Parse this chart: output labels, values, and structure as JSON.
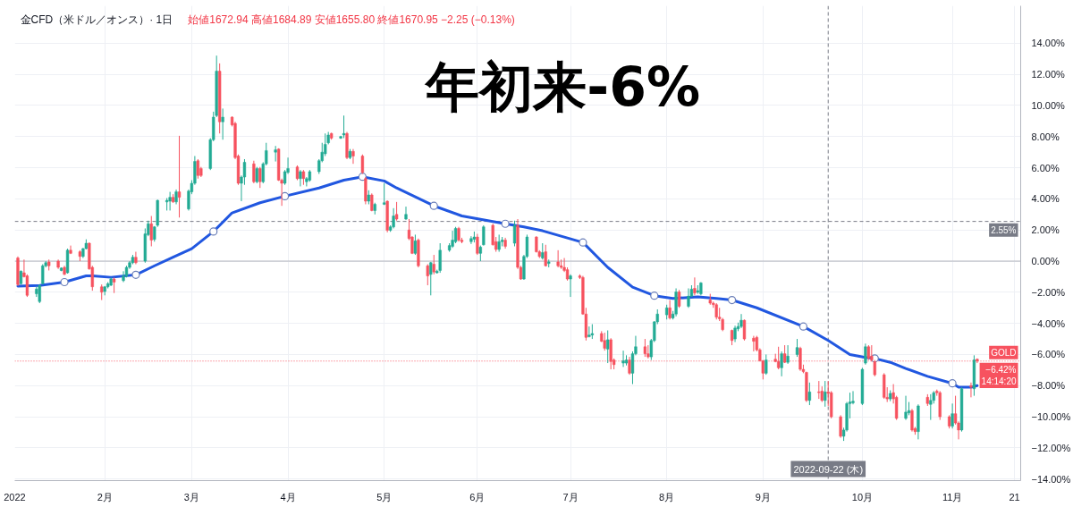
{
  "chart_data": {
    "type": "candlestick",
    "title": "年初来-6%",
    "subtitle": "金CFD（米ドル／オンス）· 1日",
    "annotations": [
      "始値1672.94 高値1684.89 安値1655.80 終値1670.95 −2.25 (−0.13%)"
    ],
    "xlim": [
      "2022-01-03",
      "2022-11-23"
    ],
    "xticks": [
      {
        "value": "2022-01-03",
        "label": "2022"
      },
      {
        "value": "2022-02-01",
        "label": "2月"
      },
      {
        "value": "2022-03-01",
        "label": "3月"
      },
      {
        "value": "2022-04-01",
        "label": "4月"
      },
      {
        "value": "2022-05-02",
        "label": "5月"
      },
      {
        "value": "2022-06-01",
        "label": "6月"
      },
      {
        "value": "2022-07-01",
        "label": "7月"
      },
      {
        "value": "2022-08-01",
        "label": "8月"
      },
      {
        "value": "2022-09-01",
        "label": "9月"
      },
      {
        "value": "2022-10-03",
        "label": "10月"
      },
      {
        "value": "2022-11-01",
        "label": "11月"
      },
      {
        "value": "2022-11-21",
        "label": "21"
      }
    ],
    "ylim": [
      -14.1,
      16.4
    ],
    "yticks": [
      {
        "value": 14,
        "label": "14.00%"
      },
      {
        "value": 12,
        "label": "12.00%"
      },
      {
        "value": 10,
        "label": "10.00%"
      },
      {
        "value": 8,
        "label": "8.00%"
      },
      {
        "value": 6,
        "label": "6.00%"
      },
      {
        "value": 4,
        "label": "4.00%"
      },
      {
        "value": 2,
        "label": "2.00%"
      },
      {
        "value": 0,
        "label": "0.00%"
      },
      {
        "value": -2,
        "label": "−2.00%"
      },
      {
        "value": -4,
        "label": "−4.00%"
      },
      {
        "value": -6,
        "label": "−6.00%"
      },
      {
        "value": -8,
        "label": "−8.00%"
      },
      {
        "value": -10,
        "label": "−10.00%"
      },
      {
        "value": -12,
        "label": "−12.00%"
      },
      {
        "value": -14,
        "label": "−14.00%"
      }
    ],
    "grid": true,
    "ref_lines": [
      {
        "axis": "y",
        "value": 0,
        "color": "#b2b5be",
        "line_style": "solid"
      },
      {
        "axis": "x",
        "value": "2022-09-22",
        "label": "2022-09-22 (木)",
        "color": "#787b86",
        "line_style": "dashed"
      },
      {
        "axis": "y",
        "value": 2.55,
        "label": "2.55%",
        "color": "#787b86",
        "line_style": "dashed"
      },
      {
        "axis": "y",
        "value": -6.42,
        "label": "−6.42%\n14:14:20",
        "color": "#f7525f",
        "line_style": "dotted"
      }
    ],
    "series": [
      {
        "type": "line",
        "color": "#2157e0",
        "x": [
          "2022-01-04",
          "2022-01-11",
          "2022-01-19",
          "2022-01-26",
          "2022-01-28",
          "2022-02-03",
          "2022-02-11",
          "2022-02-17",
          "2022-02-23",
          "2022-03-01",
          "2022-03-08",
          "2022-03-14",
          "2022-03-23",
          "2022-03-31",
          "2022-04-11",
          "2022-04-19",
          "2022-04-25",
          "2022-05-02",
          "2022-05-06",
          "2022-05-18",
          "2022-05-27",
          "2022-06-10",
          "2022-06-16",
          "2022-06-22",
          "2022-07-05",
          "2022-07-13",
          "2022-07-21",
          "2022-07-28",
          "2022-08-03",
          "2022-08-11",
          "2022-08-17",
          "2022-08-22",
          "2022-08-30",
          "2022-09-14",
          "2022-09-22",
          "2022-09-29",
          "2022-10-04",
          "2022-10-07",
          "2022-10-12",
          "2022-10-17",
          "2022-10-24",
          "2022-11-01",
          "2022-11-03",
          "2022-11-07",
          "2022-11-09"
        ],
        "values": [
          -1.6,
          -1.56,
          -1.35,
          -0.95,
          -0.94,
          -1.04,
          -0.88,
          -0.3,
          0.25,
          0.8,
          1.9,
          3.1,
          3.75,
          4.17,
          4.7,
          5.2,
          5.42,
          5.15,
          4.7,
          3.55,
          2.9,
          2.4,
          2.2,
          1.95,
          1.2,
          -0.4,
          -1.67,
          -2.22,
          -2.4,
          -2.3,
          -2.4,
          -2.5,
          -3.0,
          -4.2,
          -5.1,
          -6.0,
          -6.19,
          -6.25,
          -6.5,
          -6.9,
          -7.4,
          -7.85,
          -8.1,
          -8.1,
          -8.0
        ]
      },
      {
        "type": "scatter",
        "color": "#ffffff",
        "marker": "circle",
        "x": [
          "2022-01-19",
          "2022-02-11",
          "2022-03-08",
          "2022-03-31",
          "2022-04-25",
          "2022-05-18",
          "2022-06-10",
          "2022-07-05",
          "2022-07-28",
          "2022-08-22",
          "2022-09-14",
          "2022-10-07",
          "2022-11-01"
        ],
        "values": [
          -1.35,
          -0.88,
          1.9,
          4.17,
          5.42,
          3.55,
          2.4,
          1.2,
          -2.22,
          -2.5,
          -4.2,
          -6.25,
          -7.85
        ]
      },
      {
        "name": "GOLD",
        "x": [
          "2022-01-04",
          "2022-01-05",
          "2022-01-06",
          "2022-01-07",
          "2022-01-10",
          "2022-01-11",
          "2022-01-12",
          "2022-01-13",
          "2022-01-14",
          "2022-01-17",
          "2022-01-18",
          "2022-01-19",
          "2022-01-20",
          "2022-01-21",
          "2022-01-24",
          "2022-01-25",
          "2022-01-26",
          "2022-01-27",
          "2022-01-28",
          "2022-01-31",
          "2022-02-01",
          "2022-02-02",
          "2022-02-03",
          "2022-02-04",
          "2022-02-07",
          "2022-02-08",
          "2022-02-09",
          "2022-02-10",
          "2022-02-11",
          "2022-02-14",
          "2022-02-15",
          "2022-02-16",
          "2022-02-17",
          "2022-02-18",
          "2022-02-21",
          "2022-02-22",
          "2022-02-23",
          "2022-02-24",
          "2022-02-25",
          "2022-02-28",
          "2022-03-01",
          "2022-03-02",
          "2022-03-03",
          "2022-03-04",
          "2022-03-07",
          "2022-03-08",
          "2022-03-09",
          "2022-03-10",
          "2022-03-11",
          "2022-03-14",
          "2022-03-15",
          "2022-03-16",
          "2022-03-17",
          "2022-03-18",
          "2022-03-21",
          "2022-03-22",
          "2022-03-23",
          "2022-03-24",
          "2022-03-25",
          "2022-03-28",
          "2022-03-29",
          "2022-03-30",
          "2022-03-31",
          "2022-04-01",
          "2022-04-04",
          "2022-04-05",
          "2022-04-06",
          "2022-04-07",
          "2022-04-08",
          "2022-04-11",
          "2022-04-12",
          "2022-04-13",
          "2022-04-14",
          "2022-04-15",
          "2022-04-18",
          "2022-04-19",
          "2022-04-20",
          "2022-04-21",
          "2022-04-22",
          "2022-04-25",
          "2022-04-26",
          "2022-04-27",
          "2022-04-28",
          "2022-04-29",
          "2022-05-02",
          "2022-05-03",
          "2022-05-04",
          "2022-05-05",
          "2022-05-06",
          "2022-05-09",
          "2022-05-10",
          "2022-05-11",
          "2022-05-12",
          "2022-05-13",
          "2022-05-16",
          "2022-05-17",
          "2022-05-18",
          "2022-05-19",
          "2022-05-20",
          "2022-05-23",
          "2022-05-24",
          "2022-05-25",
          "2022-05-26",
          "2022-05-27",
          "2022-05-30",
          "2022-05-31",
          "2022-06-01",
          "2022-06-02",
          "2022-06-03",
          "2022-06-06",
          "2022-06-07",
          "2022-06-08",
          "2022-06-09",
          "2022-06-10",
          "2022-06-13",
          "2022-06-14",
          "2022-06-15",
          "2022-06-16",
          "2022-06-17",
          "2022-06-20",
          "2022-06-21",
          "2022-06-22",
          "2022-06-23",
          "2022-06-24",
          "2022-06-27",
          "2022-06-28",
          "2022-06-29",
          "2022-06-30",
          "2022-07-01",
          "2022-07-04",
          "2022-07-05",
          "2022-07-06",
          "2022-07-07",
          "2022-07-08",
          "2022-07-11",
          "2022-07-12",
          "2022-07-13",
          "2022-07-14",
          "2022-07-15",
          "2022-07-18",
          "2022-07-19",
          "2022-07-20",
          "2022-07-21",
          "2022-07-22",
          "2022-07-25",
          "2022-07-26",
          "2022-07-27",
          "2022-07-28",
          "2022-07-29",
          "2022-08-01",
          "2022-08-02",
          "2022-08-03",
          "2022-08-04",
          "2022-08-05",
          "2022-08-08",
          "2022-08-09",
          "2022-08-10",
          "2022-08-11",
          "2022-08-12",
          "2022-08-15",
          "2022-08-16",
          "2022-08-17",
          "2022-08-18",
          "2022-08-19",
          "2022-08-22",
          "2022-08-23",
          "2022-08-24",
          "2022-08-25",
          "2022-08-26",
          "2022-08-29",
          "2022-08-30",
          "2022-08-31",
          "2022-09-01",
          "2022-09-02",
          "2022-09-05",
          "2022-09-06",
          "2022-09-07",
          "2022-09-08",
          "2022-09-09",
          "2022-09-12",
          "2022-09-13",
          "2022-09-14",
          "2022-09-15",
          "2022-09-16",
          "2022-09-19",
          "2022-09-20",
          "2022-09-21",
          "2022-09-22",
          "2022-09-23",
          "2022-09-26",
          "2022-09-27",
          "2022-09-28",
          "2022-09-29",
          "2022-09-30",
          "2022-10-03",
          "2022-10-04",
          "2022-10-05",
          "2022-10-06",
          "2022-10-07",
          "2022-10-10",
          "2022-10-11",
          "2022-10-12",
          "2022-10-13",
          "2022-10-14",
          "2022-10-17",
          "2022-10-18",
          "2022-10-19",
          "2022-10-20",
          "2022-10-21",
          "2022-10-24",
          "2022-10-25",
          "2022-10-26",
          "2022-10-27",
          "2022-10-28",
          "2022-10-31",
          "2022-11-01",
          "2022-11-02",
          "2022-11-03",
          "2022-11-04",
          "2022-11-07",
          "2022-11-08",
          "2022-11-09"
        ],
        "ohlc": [
          [
            0.2,
            0.3,
            -1.6,
            -1.5
          ],
          [
            -1.45,
            -0.6,
            -1.5,
            -0.65
          ],
          [
            -0.75,
            0.1,
            -1.05,
            -1.0
          ],
          [
            -0.95,
            -0.85,
            -2.3,
            -2.2
          ],
          [
            -2.1,
            -1.65,
            -2.3,
            -1.8
          ],
          [
            -2.6,
            -1.5,
            -2.7,
            -1.55
          ],
          [
            -1.45,
            -0.2,
            -1.5,
            -0.3
          ],
          [
            -0.3,
            0.0,
            -0.4,
            -0.1
          ],
          [
            -0.05,
            0.1,
            -0.6,
            -0.3
          ],
          [
            0.0,
            0.1,
            -0.5,
            -0.4
          ],
          [
            -0.6,
            -0.4,
            -0.65,
            -0.45
          ],
          [
            -0.4,
            -0.3,
            -0.9,
            -0.85
          ],
          [
            -0.75,
            0.8,
            -0.8,
            0.7
          ],
          [
            0.7,
            1.0,
            0.45,
            0.5
          ],
          [
            0.6,
            0.7,
            0.0,
            0.3
          ],
          [
            0.3,
            0.85,
            0.2,
            0.8
          ],
          [
            0.8,
            1.4,
            0.75,
            1.15
          ],
          [
            1.15,
            1.2,
            -0.55,
            -0.5
          ],
          [
            -0.4,
            -0.3,
            -1.9,
            -1.65
          ],
          [
            -1.65,
            -1.5,
            -2.5,
            -2.0
          ],
          [
            -1.95,
            -1.6,
            -2.2,
            -1.65
          ],
          [
            -1.65,
            -1.35,
            -1.75,
            -1.45
          ],
          [
            -1.55,
            -1.05,
            -1.6,
            -1.15
          ],
          [
            -1.15,
            -1.05,
            -2.05,
            -1.35
          ],
          [
            -1.25,
            -0.65,
            -1.35,
            -0.95
          ],
          [
            -0.95,
            -0.3,
            -1.05,
            -0.4
          ],
          [
            -0.4,
            0.0,
            -0.5,
            -0.1
          ],
          [
            -0.1,
            0.4,
            -0.2,
            0.25
          ],
          [
            0.25,
            0.6,
            -0.2,
            -0.1
          ],
          [
            0.0,
            2.1,
            -0.1,
            1.75
          ],
          [
            1.7,
            2.6,
            1.6,
            2.4
          ],
          [
            2.4,
            2.9,
            0.95,
            1.35
          ],
          [
            1.4,
            2.25,
            1.25,
            2.2
          ],
          [
            2.3,
            3.95,
            2.2,
            3.9
          ],
          [
            3.8,
            4.05,
            3.25,
            3.9
          ],
          [
            3.85,
            4.45,
            3.25,
            4.1
          ],
          [
            4.1,
            4.3,
            3.75,
            3.8
          ],
          [
            3.8,
            4.6,
            3.65,
            4.45
          ],
          [
            4.45,
            8.05,
            2.8,
            4.1
          ],
          [
            3.35,
            4.6,
            3.25,
            4.5
          ],
          [
            4.45,
            5.2,
            4.3,
            5.0
          ],
          [
            5.0,
            6.75,
            4.9,
            6.4
          ],
          [
            6.45,
            6.55,
            5.3,
            5.5
          ],
          [
            5.95,
            6.05,
            5.4,
            5.5
          ],
          [
            5.95,
            7.9,
            5.85,
            7.8
          ],
          [
            7.8,
            9.6,
            7.7,
            9.25
          ],
          [
            9.35,
            13.2,
            9.25,
            12.2
          ],
          [
            12.2,
            12.7,
            8.2,
            8.95
          ],
          [
            8.95,
            9.8,
            7.8,
            9.25
          ],
          [
            9.25,
            9.3,
            8.65,
            8.75
          ],
          [
            8.85,
            8.95,
            6.55,
            6.65
          ],
          [
            6.75,
            6.85,
            4.9,
            5.0
          ],
          [
            5.0,
            5.5,
            3.85,
            5.4
          ],
          [
            5.4,
            6.55,
            4.9,
            6.35
          ],
          [
            6.25,
            6.45,
            5.0,
            5.1
          ],
          [
            5.1,
            6.05,
            5.0,
            5.95
          ],
          [
            5.95,
            6.05,
            4.7,
            5.1
          ],
          [
            5.1,
            6.35,
            5.0,
            6.25
          ],
          [
            6.25,
            7.6,
            6.15,
            7.1
          ],
          [
            7.0,
            7.4,
            6.4,
            7.15
          ],
          [
            7.2,
            7.25,
            5.15,
            5.2
          ],
          [
            5.2,
            5.3,
            3.55,
            5.0
          ],
          [
            5.0,
            5.85,
            4.9,
            5.75
          ],
          [
            5.7,
            6.65,
            5.6,
            5.95
          ],
          [
            6.05,
            6.15,
            5.2,
            5.3
          ],
          [
            5.3,
            5.85,
            4.8,
            5.75
          ],
          [
            5.75,
            5.85,
            4.9,
            5.3
          ],
          [
            5.1,
            5.4,
            4.8,
            5.3
          ],
          [
            5.2,
            5.85,
            5.1,
            5.75
          ],
          [
            5.75,
            6.55,
            5.6,
            6.45
          ],
          [
            6.45,
            7.6,
            6.35,
            7.0
          ],
          [
            6.9,
            8.2,
            6.75,
            7.5
          ],
          [
            7.6,
            8.3,
            7.5,
            8.1
          ],
          [
            8.2,
            8.25,
            7.8,
            7.9
          ],
          [
            7.9,
            8.05,
            7.85,
            8.0
          ],
          [
            8.1,
            9.35,
            7.9,
            8.2
          ],
          [
            8.2,
            8.3,
            6.55,
            6.65
          ],
          [
            6.65,
            7.2,
            6.55,
            7.05
          ],
          [
            7.05,
            7.2,
            6.25,
            6.75
          ],
          [
            6.75,
            6.85,
            5.6,
            5.7
          ],
          [
            5.3,
            5.4,
            3.65,
            3.85
          ],
          [
            3.85,
            4.55,
            3.65,
            4.25
          ],
          [
            4.25,
            4.35,
            3.2,
            3.25
          ],
          [
            3.25,
            3.75,
            3.0,
            3.65
          ],
          [
            3.65,
            5.0,
            3.6,
            3.75
          ],
          [
            3.85,
            3.9,
            1.85,
            1.98
          ],
          [
            1.98,
            2.3,
            1.88,
            2.2
          ],
          [
            2.2,
            3.4,
            2.1,
            2.9
          ],
          [
            3.0,
            3.8,
            2.6,
            2.7
          ],
          [
            2.7,
            3.5,
            2.65,
            3.0
          ],
          [
            2.0,
            2.7,
            1.35,
            1.45
          ],
          [
            1.55,
            1.6,
            0.45,
            0.5
          ],
          [
            0.5,
            1.7,
            0.4,
            1.3
          ],
          [
            1.35,
            1.45,
            -0.4,
            -0.3
          ],
          [
            -0.3,
            -0.2,
            -1.55,
            -0.95
          ],
          [
            -0.85,
            -0.05,
            -2.2,
            -0.1
          ],
          [
            -0.2,
            0.4,
            -0.85,
            -0.7
          ],
          [
            -0.75,
            -0.55,
            -0.8,
            -0.65
          ],
          [
            -0.6,
            1.15,
            -0.75,
            0.7
          ],
          [
            0.7,
            1.15,
            0.6,
            1.0
          ],
          [
            0.95,
            1.95,
            0.85,
            1.35
          ],
          [
            1.25,
            2.2,
            1.15,
            2.1
          ],
          [
            2.1,
            2.2,
            1.25,
            1.35
          ],
          [
            1.35,
            1.5,
            1.15,
            1.25
          ],
          [
            1.25,
            1.6,
            1.1,
            1.45
          ],
          [
            1.4,
            1.9,
            1.2,
            1.55
          ],
          [
            1.55,
            1.75,
            0.4,
            0.5
          ],
          [
            0.5,
            1.0,
            0.0,
            0.9
          ],
          [
            1.05,
            2.3,
            1.0,
            2.2
          ],
          [
            2.3,
            2.4,
            1.0,
            1.05
          ],
          [
            1.25,
            1.55,
            0.6,
            0.75
          ],
          [
            0.75,
            1.7,
            0.6,
            1.25
          ],
          [
            1.25,
            1.55,
            0.95,
            1.35
          ],
          [
            1.35,
            1.5,
            0.8,
            0.95
          ],
          [
            1.15,
            2.6,
            0.95,
            2.3
          ],
          [
            2.3,
            2.7,
            -0.5,
            -0.4
          ],
          [
            -0.4,
            -0.3,
            -1.2,
            -1.15
          ],
          [
            -1.15,
            0.4,
            -1.2,
            0.3
          ],
          [
            0.3,
            1.7,
            0.2,
            1.55
          ],
          [
            1.55,
            1.6,
            0.55,
            0.6
          ],
          [
            0.6,
            0.7,
            0.2,
            0.3
          ],
          [
            0.2,
            1.15,
            0.1,
            0.55
          ],
          [
            0.6,
            1.05,
            -0.35,
            -0.3
          ],
          [
            -0.15,
            0.1,
            -0.4,
            -0.05
          ],
          [
            -0.05,
            0.7,
            -0.4,
            -0.3
          ],
          [
            -0.3,
            0.1,
            -0.5,
            -0.4
          ],
          [
            -0.4,
            0.2,
            -0.7,
            -0.6
          ],
          [
            -0.55,
            -0.4,
            -1.25,
            -1.15
          ],
          [
            -1.15,
            -0.85,
            -2.3,
            -0.95
          ],
          [
            -0.95,
            -0.85,
            -1.15,
            -1.05
          ],
          [
            -1.05,
            -0.95,
            -3.45,
            -3.4
          ],
          [
            -3.4,
            -3.0,
            -5.1,
            -4.9
          ],
          [
            -4.85,
            -4.2,
            -4.9,
            -4.75
          ],
          [
            -4.75,
            -4.05,
            -5.0,
            -4.65
          ],
          [
            -4.65,
            -4.5,
            -5.2,
            -5.15
          ],
          [
            -5.1,
            -4.6,
            -5.75,
            -5.6
          ],
          [
            -5.65,
            -4.45,
            -6.55,
            -5.05
          ],
          [
            -5.05,
            -4.95,
            -6.95,
            -6.45
          ],
          [
            -6.35,
            -6.25,
            -6.95,
            -6.65
          ],
          [
            -6.55,
            -5.75,
            -6.8,
            -6.4
          ],
          [
            -6.55,
            -6.05,
            -6.7,
            -6.35
          ],
          [
            -6.35,
            -6.15,
            -7.3,
            -7.2
          ],
          [
            -7.2,
            -5.8,
            -7.9,
            -5.95
          ],
          [
            -5.95,
            -4.8,
            -6.05,
            -5.5
          ],
          [
            -5.5,
            -5.0,
            -6.15,
            -5.95
          ],
          [
            -5.95,
            -5.4,
            -6.25,
            -6.15
          ],
          [
            -6.15,
            -5.0,
            -6.35,
            -5.1
          ],
          [
            -5.1,
            -3.85,
            -5.2,
            -3.9
          ],
          [
            -3.9,
            -3.1,
            -4.05,
            -3.4
          ],
          [
            -3.45,
            -2.8,
            -3.75,
            -3.0
          ],
          [
            -3.0,
            -2.5,
            -3.75,
            -3.65
          ],
          [
            -3.65,
            -3.2,
            -3.75,
            -3.4
          ],
          [
            -3.4,
            -1.75,
            -3.55,
            -1.98
          ],
          [
            -1.98,
            -1.85,
            -3.0,
            -2.9
          ],
          [
            -2.9,
            -1.75,
            -3.0,
            -2.25
          ],
          [
            -2.25,
            -1.55,
            -2.3,
            -1.8
          ],
          [
            -1.75,
            -1.05,
            -2.2,
            -2.05
          ],
          [
            -2.0,
            -1.55,
            -2.1,
            -1.9
          ],
          [
            -2.1,
            -1.35,
            -2.2,
            -1.4
          ],
          [
            -2.5,
            -2.1,
            -2.8,
            -2.7
          ],
          [
            -2.7,
            -2.6,
            -3.0,
            -2.8
          ],
          [
            -2.8,
            -2.7,
            -3.75,
            -3.6
          ],
          [
            -3.6,
            -3.0,
            -3.85,
            -3.7
          ],
          [
            -3.75,
            -3.65,
            -4.5,
            -4.4
          ],
          [
            -4.45,
            -4.4,
            -5.4,
            -5.1
          ],
          [
            -5.0,
            -4.15,
            -5.2,
            -4.3
          ],
          [
            -4.35,
            -3.95,
            -4.5,
            -4.2
          ],
          [
            -4.2,
            -3.4,
            -4.3,
            -3.8
          ],
          [
            -3.8,
            -3.75,
            -5.1,
            -5.0
          ],
          [
            -4.95,
            -4.8,
            -5.8,
            -5.15
          ],
          [
            -4.9,
            -4.8,
            -5.8,
            -5.7
          ],
          [
            -5.7,
            -5.6,
            -6.45,
            -6.4
          ],
          [
            -6.4,
            -6.35,
            -7.6,
            -7.2
          ],
          [
            -7.2,
            -6.0,
            -7.3,
            -6.35
          ],
          [
            -6.3,
            -5.95,
            -6.5,
            -6.45
          ],
          [
            -6.45,
            -5.5,
            -6.95,
            -6.85
          ],
          [
            -6.85,
            -5.8,
            -7.4,
            -5.95
          ],
          [
            -5.95,
            -5.4,
            -6.55,
            -6.5
          ],
          [
            -6.5,
            -5.4,
            -6.6,
            -6.1
          ],
          [
            -6.0,
            -5.0,
            -6.15,
            -5.55
          ],
          [
            -5.6,
            -5.5,
            -7.05,
            -6.95
          ],
          [
            -6.95,
            -6.65,
            -7.2,
            -7.1
          ],
          [
            -7.15,
            -7.1,
            -9.05,
            -8.95
          ],
          [
            -8.95,
            -7.8,
            -9.25,
            -8.4
          ],
          [
            -8.4,
            -7.7,
            -8.85,
            -8.45
          ],
          [
            -8.35,
            -8.05,
            -9.05,
            -8.95
          ],
          [
            -8.95,
            -7.7,
            -9.35,
            -8.4
          ],
          [
            -8.4,
            -7.7,
            -9.3,
            -8.5
          ],
          [
            -8.45,
            -8.35,
            -10.1,
            -10.0
          ],
          [
            -10.0,
            -9.9,
            -11.35,
            -11.25
          ],
          [
            -11.25,
            -10.7,
            -11.55,
            -10.85
          ],
          [
            -10.85,
            -9.05,
            -10.95,
            -9.15
          ],
          [
            -9.15,
            -8.45,
            -10.1,
            -9.05
          ],
          [
            -9.1,
            -8.35,
            -9.2,
            -9.0
          ],
          [
            -9.15,
            -6.85,
            -9.25,
            -6.95
          ],
          [
            -6.55,
            -5.3,
            -6.65,
            -5.5
          ],
          [
            -5.5,
            -5.4,
            -6.35,
            -6.25
          ],
          [
            -6.1,
            -5.4,
            -6.45,
            -6.35
          ],
          [
            -6.45,
            -6.35,
            -7.4,
            -7.3
          ],
          [
            -7.3,
            -7.2,
            -8.85,
            -8.75
          ],
          [
            -8.75,
            -8.1,
            -9.05,
            -8.85
          ],
          [
            -8.85,
            -8.3,
            -9.0,
            -8.5
          ],
          [
            -8.45,
            -7.9,
            -9.15,
            -8.85
          ],
          [
            -8.75,
            -8.65,
            -10.2,
            -10.1
          ],
          [
            -10.1,
            -8.65,
            -10.2,
            -9.7
          ],
          [
            -9.75,
            -9.05,
            -9.9,
            -9.6
          ],
          [
            -9.6,
            -9.5,
            -10.95,
            -10.85
          ],
          [
            -10.75,
            -10.65,
            -11.15,
            -10.95
          ],
          [
            -10.95,
            -9.2,
            -11.45,
            -9.3
          ],
          [
            -8.75,
            -8.55,
            -9.3,
            -9.15
          ],
          [
            -9.2,
            -8.55,
            -10.2,
            -8.95
          ],
          [
            -8.95,
            -8.35,
            -9.15,
            -8.45
          ],
          [
            -8.35,
            -8.25,
            -8.65,
            -8.45
          ],
          [
            -8.45,
            -8.35,
            -10.2,
            -10.0
          ],
          [
            -10.0,
            -9.9,
            -10.75,
            -10.6
          ],
          [
            -10.6,
            -9.15,
            -10.75,
            -9.8
          ],
          [
            -9.8,
            -8.65,
            -10.5,
            -10.4
          ],
          [
            -10.4,
            -10.3,
            -11.45,
            -10.85
          ],
          [
            -10.85,
            -8.1,
            -10.95,
            -8.2
          ],
          [
            -8.0,
            -7.8,
            -8.75,
            -8.1
          ],
          [
            -8.2,
            -6.05,
            -8.65,
            -6.35
          ],
          [
            -6.3,
            -6.25,
            -6.55,
            -6.42
          ]
        ],
        "colors": [
          "#f7525f",
          "#22ab94",
          "#f7525f",
          "#f7525f",
          "#22ab94",
          "#22ab94",
          "#22ab94",
          "#22ab94",
          "#f7525f",
          "#f7525f",
          "#22ab94",
          "#f7525f",
          "#22ab94",
          "#f7525f",
          "#f7525f",
          "#22ab94",
          "#22ab94",
          "#f7525f",
          "#f7525f",
          "#f7525f",
          "#22ab94",
          "#22ab94",
          "#22ab94",
          "#f7525f",
          "#22ab94",
          "#22ab94",
          "#22ab94",
          "#22ab94",
          "#f7525f",
          "#22ab94",
          "#22ab94",
          "#f7525f",
          "#22ab94",
          "#22ab94",
          "#22ab94",
          "#22ab94",
          "#f7525f",
          "#22ab94",
          "#f7525f",
          "#22ab94",
          "#22ab94",
          "#22ab94",
          "#f7525f",
          "#f7525f",
          "#22ab94",
          "#22ab94",
          "#22ab94",
          "#f7525f",
          "#22ab94",
          "#f7525f",
          "#f7525f",
          "#f7525f",
          "#22ab94",
          "#22ab94",
          "#f7525f",
          "#22ab94",
          "#f7525f",
          "#22ab94",
          "#22ab94",
          "#22ab94",
          "#f7525f",
          "#f7525f",
          "#22ab94",
          "#22ab94",
          "#f7525f",
          "#22ab94",
          "#f7525f",
          "#22ab94",
          "#22ab94",
          "#22ab94",
          "#22ab94",
          "#22ab94",
          "#22ab94",
          "#f7525f",
          "#22ab94",
          "#22ab94",
          "#f7525f",
          "#22ab94",
          "#f7525f",
          "#f7525f",
          "#f7525f",
          "#22ab94",
          "#f7525f",
          "#22ab94",
          "#22ab94",
          "#f7525f",
          "#22ab94",
          "#22ab94",
          "#f7525f",
          "#22ab94",
          "#f7525f",
          "#f7525f",
          "#22ab94",
          "#f7525f",
          "#f7525f",
          "#22ab94",
          "#f7525f",
          "#22ab94",
          "#22ab94",
          "#22ab94",
          "#22ab94",
          "#22ab94",
          "#f7525f",
          "#f7525f",
          "#22ab94",
          "#22ab94",
          "#f7525f",
          "#22ab94",
          "#22ab94",
          "#f7525f",
          "#f7525f",
          "#22ab94",
          "#22ab94",
          "#f7525f",
          "#22ab94",
          "#f7525f",
          "#f7525f",
          "#22ab94",
          "#22ab94",
          "#f7525f",
          "#f7525f",
          "#22ab94",
          "#f7525f",
          "#22ab94",
          "#f7525f",
          "#f7525f",
          "#f7525f",
          "#f7525f",
          "#22ab94",
          "#f7525f",
          "#f7525f",
          "#f7525f",
          "#22ab94",
          "#22ab94",
          "#f7525f",
          "#f7525f",
          "#22ab94",
          "#f7525f",
          "#f7525f",
          "#22ab94",
          "#22ab94",
          "#f7525f",
          "#22ab94",
          "#22ab94",
          "#f7525f",
          "#f7525f",
          "#22ab94",
          "#22ab94",
          "#22ab94",
          "#22ab94",
          "#f7525f",
          "#22ab94",
          "#22ab94",
          "#f7525f",
          "#22ab94",
          "#22ab94",
          "#f7525f",
          "#22ab94",
          "#22ab94",
          "#f7525f",
          "#f7525f",
          "#f7525f",
          "#f7525f",
          "#f7525f",
          "#f7525f",
          "#22ab94",
          "#22ab94",
          "#22ab94",
          "#f7525f",
          "#f7525f",
          "#f7525f",
          "#f7525f",
          "#f7525f",
          "#22ab94",
          "#f7525f",
          "#f7525f",
          "#22ab94",
          "#f7525f",
          "#22ab94",
          "#22ab94",
          "#f7525f",
          "#f7525f",
          "#f7525f",
          "#22ab94",
          "#f7525f",
          "#f7525f",
          "#22ab94",
          "#f7525f",
          "#f7525f",
          "#f7525f",
          "#22ab94",
          "#22ab94",
          "#22ab94",
          "#22ab94",
          "#22ab94",
          "#22ab94",
          "#f7525f",
          "#f7525f",
          "#f7525f",
          "#f7525f",
          "#f7525f",
          "#22ab94",
          "#f7525f",
          "#f7525f",
          "#22ab94",
          "#22ab94",
          "#f7525f",
          "#f7525f",
          "#22ab94",
          "#f7525f",
          "#22ab94",
          "#22ab94",
          "#f7525f",
          "#f7525f",
          "#f7525f",
          "#22ab94",
          "#f7525f",
          "#f7525f",
          "#22ab94",
          "#f7525f",
          "#22ab94",
          "#f7525f"
        ]
      }
    ]
  }
}
